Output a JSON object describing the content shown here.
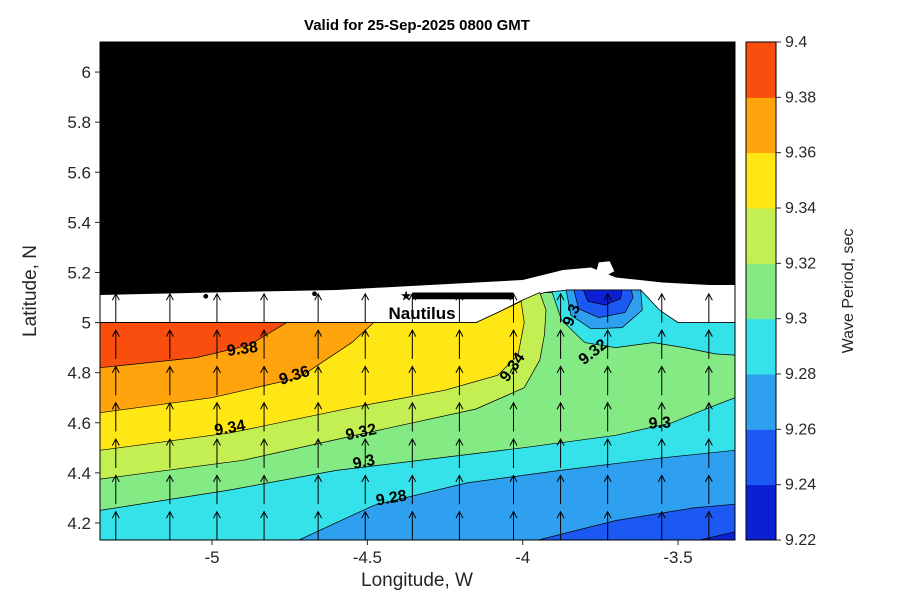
{
  "chart_data": {
    "type": "filled-contour-map",
    "title": "Valid for 25-Sep-2025 0800 GMT",
    "xlabel": "Longitude, W",
    "ylabel": "Latitude, N",
    "xlim": [
      -5.3605,
      -3.3166
    ],
    "ylim": [
      4.132,
      6.12
    ],
    "xticks": [
      -5,
      -4.5,
      -4,
      -3.5
    ],
    "xtick_labels": [
      "-5",
      "-4.5",
      "-4",
      "-3.5"
    ],
    "yticks": [
      4.2,
      4.4,
      4.6,
      4.8,
      5,
      5.2,
      5.4,
      5.6,
      5.8,
      6
    ],
    "ytick_labels": [
      "4.2",
      "4.4",
      "4.6",
      "4.8",
      "5",
      "5.2",
      "5.4",
      "5.6",
      "5.8",
      "6"
    ],
    "grid": false,
    "axis_color": "#262626",
    "land_color": "#000000",
    "contour_levels": [
      9.22,
      9.24,
      9.26,
      9.28,
      9.3,
      9.32,
      9.34,
      9.36,
      9.38,
      9.4
    ],
    "colorbar": {
      "label": "Wave Period, sec",
      "min": 9.22,
      "max": 9.4,
      "tick_values": [
        9.22,
        9.24,
        9.26,
        9.28,
        9.3,
        9.32,
        9.34,
        9.36,
        9.38,
        9.4
      ],
      "tick_labels": [
        "9.22",
        "9.24",
        "9.26",
        "9.28",
        "9.3",
        "9.32",
        "9.34",
        "9.36",
        "9.38",
        "9.4"
      ],
      "colors_bottom_to_top": [
        "#0b1fd3",
        "#1c58f2",
        "#2fa0ef",
        "#35e2ea",
        "#83ea84",
        "#c3ef52",
        "#ffe715",
        "#ffa40d",
        "#f94e0d"
      ]
    },
    "station": {
      "label": "Nautilus",
      "star_lon": -4.375,
      "star_lat": 5.108,
      "bar": [
        -4.355,
        5.093,
        -4.03,
        5.12
      ],
      "label_lon": -4.324,
      "label_lat": 5.038
    },
    "quiver": {
      "direction": "north",
      "lon_start": -5.3,
      "lon_step": 0.158,
      "cols": 13,
      "lat_bases": [
        5.0,
        4.855,
        4.71,
        4.565,
        4.42,
        4.275,
        4.13
      ],
      "length": 0.115
    },
    "contour_labels": [
      {
        "text": "9.38",
        "lon": -4.9,
        "lat": 4.875,
        "rot": -8
      },
      {
        "text": "9.36",
        "lon": -4.73,
        "lat": 4.77,
        "rot": -18
      },
      {
        "text": "9.34",
        "lon": -4.94,
        "lat": 4.56,
        "rot": -10
      },
      {
        "text": "9.32",
        "lon": -4.517,
        "lat": 4.543,
        "rot": -12
      },
      {
        "text": "9.3",
        "lon": -4.508,
        "lat": 4.424,
        "rot": -12
      },
      {
        "text": "9.28",
        "lon": -4.42,
        "lat": 4.28,
        "rot": -10
      },
      {
        "text": "9.34",
        "lon": -4.02,
        "lat": 4.81,
        "rot": -55
      },
      {
        "text": "9.3",
        "lon": -3.828,
        "lat": 5.022,
        "rot": -68
      },
      {
        "text": "9.32",
        "lon": -3.764,
        "lat": 4.867,
        "rot": -38
      },
      {
        "text": "9.3",
        "lon": -3.558,
        "lat": 4.579,
        "rot": -3
      }
    ],
    "map": {
      "coast_line": [
        [
          -5.3605,
          5.11
        ],
        [
          -5.0,
          5.12
        ],
        [
          -4.6,
          5.13
        ],
        [
          -4.3,
          5.15
        ],
        [
          -4.0,
          5.17
        ],
        [
          -3.87,
          5.21
        ],
        [
          -3.78,
          5.22
        ],
        [
          -3.7,
          5.18
        ],
        [
          -3.55,
          5.16
        ],
        [
          -3.4,
          5.15
        ],
        [
          -3.3166,
          5.15
        ]
      ],
      "sea_top": [
        [
          -5.3605,
          5.0
        ],
        [
          -4.15,
          5.0
        ],
        [
          -4.08,
          5.04
        ],
        [
          -4.0,
          5.09
        ],
        [
          -3.93,
          5.12
        ],
        [
          -3.85,
          5.13
        ],
        [
          -3.62,
          5.13
        ],
        [
          -3.56,
          5.05
        ],
        [
          -3.5,
          5.0
        ],
        [
          -3.3166,
          5.0
        ]
      ],
      "islets": [
        [
          -5.02,
          5.105
        ],
        [
          -4.67,
          5.115
        ]
      ],
      "white_notch": [
        [
          -3.765,
          5.195
        ],
        [
          -3.755,
          5.24
        ],
        [
          -3.72,
          5.245
        ],
        [
          -3.705,
          5.205
        ],
        [
          -3.735,
          5.185
        ]
      ],
      "sea_base_range": [
        9.28,
        9.3
      ],
      "sea_base_color": "#35e2ea",
      "bands": [
        {
          "range": [
            9.26,
            9.28
          ],
          "color": "#2fa0ef",
          "polygon": [
            [
              -4.72,
              4.132
            ],
            [
              -4.48,
              4.27
            ],
            [
              -4.18,
              4.36
            ],
            [
              -3.88,
              4.41
            ],
            [
              -3.55,
              4.46
            ],
            [
              -3.3166,
              4.49
            ],
            [
              -3.3166,
              4.132
            ]
          ]
        },
        {
          "range": [
            9.24,
            9.26
          ],
          "color": "#1c58f2",
          "polygon": [
            [
              -3.95,
              4.132
            ],
            [
              -3.7,
              4.21
            ],
            [
              -3.45,
              4.26
            ],
            [
              -3.3166,
              4.275
            ],
            [
              -3.3166,
              4.132
            ]
          ]
        },
        {
          "range": [
            9.22,
            9.24
          ],
          "color": "#0b1fd3",
          "polygon": [
            [
              -3.43,
              4.132
            ],
            [
              -3.3166,
              4.165
            ],
            [
              -3.3166,
              4.132
            ]
          ]
        },
        {
          "range": [
            9.3,
            9.32
          ],
          "color": "#83ea84",
          "polygon": [
            [
              -5.3605,
              4.25
            ],
            [
              -4.95,
              4.33
            ],
            [
              -4.6,
              4.41
            ],
            [
              -4.3,
              4.455
            ],
            [
              -4.0,
              4.5
            ],
            [
              -3.7,
              4.55
            ],
            [
              -3.52,
              4.6
            ],
            [
              -3.4,
              4.66
            ],
            [
              -3.3166,
              4.7
            ],
            [
              -3.3166,
              5.0
            ],
            [
              -3.5,
              5.0
            ],
            [
              -3.56,
              5.05
            ],
            [
              -3.62,
              5.13
            ],
            [
              -3.85,
              5.13
            ],
            [
              -3.93,
              5.12
            ],
            [
              -4.0,
              5.09
            ],
            [
              -4.08,
              5.04
            ],
            [
              -4.15,
              5.0
            ],
            [
              -5.3605,
              5.0
            ]
          ]
        },
        {
          "range": [
            9.32,
            9.34
          ],
          "color": "#c3ef52",
          "polygon": [
            [
              -5.3605,
              4.375
            ],
            [
              -4.9,
              4.45
            ],
            [
              -4.52,
              4.555
            ],
            [
              -4.15,
              4.655
            ],
            [
              -3.995,
              4.74
            ],
            [
              -3.945,
              4.85
            ],
            [
              -3.93,
              4.95
            ],
            [
              -3.925,
              5.05
            ],
            [
              -3.945,
              5.12
            ],
            [
              -4.0,
              5.09
            ],
            [
              -4.08,
              5.04
            ],
            [
              -4.15,
              5.0
            ],
            [
              -5.3605,
              5.0
            ]
          ]
        },
        {
          "range": [
            9.34,
            9.36
          ],
          "color": "#ffe715",
          "polygon": [
            [
              -5.3605,
              4.49
            ],
            [
              -4.94,
              4.56
            ],
            [
              -4.55,
              4.66
            ],
            [
              -4.25,
              4.73
            ],
            [
              -4.08,
              4.79
            ],
            [
              -4.015,
              4.87
            ],
            [
              -3.995,
              5.0
            ],
            [
              -4.005,
              5.085
            ],
            [
              -4.08,
              5.04
            ],
            [
              -4.15,
              5.0
            ],
            [
              -5.3605,
              5.0
            ]
          ]
        },
        {
          "range": [
            9.36,
            9.38
          ],
          "color": "#ffa40d",
          "polygon": [
            [
              -5.3605,
              4.64
            ],
            [
              -5.0,
              4.7
            ],
            [
              -4.72,
              4.78
            ],
            [
              -4.55,
              4.92
            ],
            [
              -4.48,
              5.0
            ],
            [
              -5.3605,
              5.0
            ]
          ]
        },
        {
          "range": [
            9.38,
            9.4
          ],
          "color": "#f94e0d",
          "polygon": [
            [
              -5.3605,
              4.82
            ],
            [
              -5.05,
              4.86
            ],
            [
              -4.88,
              4.91
            ],
            [
              -4.76,
              5.0
            ],
            [
              -5.3605,
              5.0
            ]
          ]
        }
      ],
      "coastal_low_patches": [
        {
          "range": [
            9.28,
            9.3
          ],
          "color": "#35e2ea",
          "polygon": [
            [
              -3.905,
              5.12
            ],
            [
              -3.875,
              5.01
            ],
            [
              -3.8,
              4.92
            ],
            [
              -3.7,
              4.9
            ],
            [
              -3.58,
              4.92
            ],
            [
              -3.48,
              4.9
            ],
            [
              -3.38,
              4.875
            ],
            [
              -3.3166,
              4.87
            ],
            [
              -3.3166,
              5.0
            ],
            [
              -3.5,
              5.0
            ],
            [
              -3.56,
              5.05
            ],
            [
              -3.62,
              5.13
            ],
            [
              -3.85,
              5.13
            ],
            [
              -3.93,
              5.12
            ]
          ]
        },
        {
          "range": [
            9.26,
            9.28
          ],
          "color": "#2fa0ef",
          "polygon": [
            [
              -3.86,
              5.13
            ],
            [
              -3.845,
              5.03
            ],
            [
              -3.78,
              4.975
            ],
            [
              -3.68,
              4.98
            ],
            [
              -3.615,
              5.05
            ],
            [
              -3.62,
              5.13
            ],
            [
              -3.85,
              5.13
            ]
          ]
        },
        {
          "range": [
            9.24,
            9.26
          ],
          "color": "#1c58f2",
          "polygon": [
            [
              -3.835,
              5.13
            ],
            [
              -3.82,
              5.055
            ],
            [
              -3.755,
              5.02
            ],
            [
              -3.67,
              5.04
            ],
            [
              -3.645,
              5.1
            ],
            [
              -3.65,
              5.13
            ]
          ]
        },
        {
          "range": [
            9.22,
            9.24
          ],
          "color": "#0b1fd3",
          "polygon": [
            [
              -3.805,
              5.13
            ],
            [
              -3.79,
              5.085
            ],
            [
              -3.735,
              5.07
            ],
            [
              -3.685,
              5.095
            ],
            [
              -3.68,
              5.13
            ]
          ]
        }
      ]
    }
  }
}
